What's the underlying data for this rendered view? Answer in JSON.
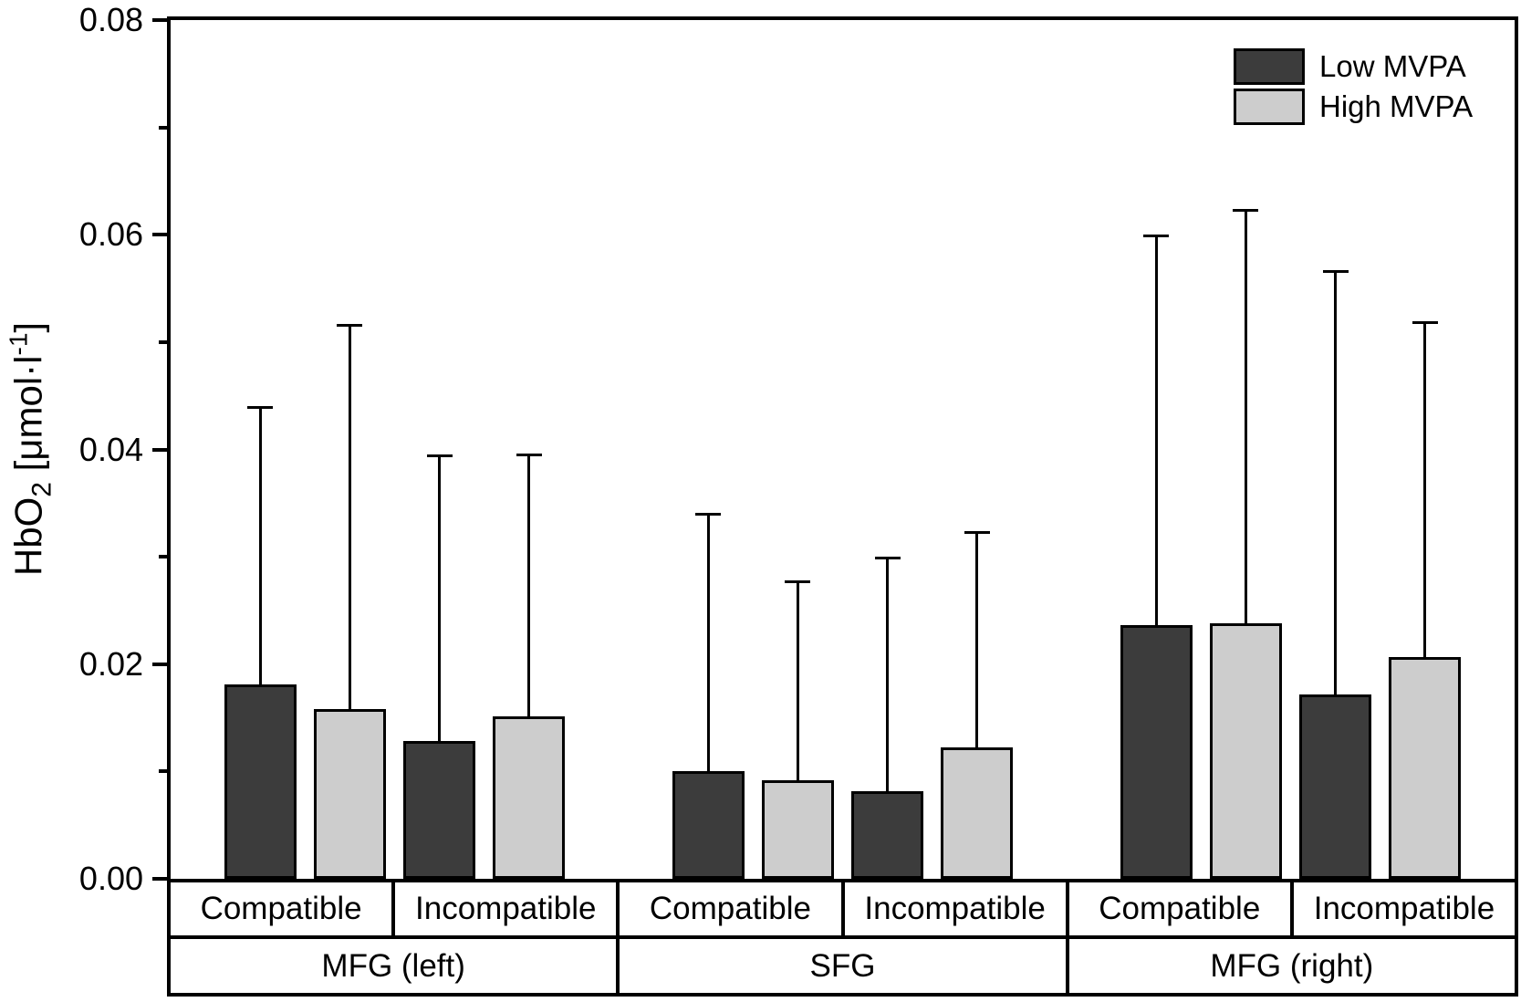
{
  "chart_data": {
    "type": "bar",
    "title": "",
    "ylabel": "HbO2 [umol/l^-1]",
    "ylabel_parts": {
      "prefix": "HbO",
      "sub": "2",
      "mid": " [μmol·l",
      "sup": "-1",
      "suffix": "]"
    },
    "ylim": [
      0,
      0.08
    ],
    "yticks": [
      0,
      0.02,
      0.04,
      0.06,
      0.08
    ],
    "ytick_labels": [
      "0.00",
      "0.02",
      "0.04",
      "0.06",
      "0.08"
    ],
    "yticks_minor": [
      0.01,
      0.03,
      0.05,
      0.07
    ],
    "grid": false,
    "error_bars": "upper-only",
    "legend": {
      "position": "top-right",
      "entries": [
        {
          "label": "Low MVPA",
          "color": "#3c3c3c"
        },
        {
          "label": "High MVPA",
          "color": "#cdcdcd"
        }
      ]
    },
    "colors": {
      "axis": "#000000",
      "background": "#ffffff"
    },
    "groups": [
      {
        "region": "MFG (left)",
        "conditions": [
          {
            "label": "Compatible",
            "bars": [
              {
                "series": "Low MVPA",
                "mean": 0.0181,
                "sd": 0.0258
              },
              {
                "series": "High MVPA",
                "mean": 0.0158,
                "sd": 0.0358
              }
            ]
          },
          {
            "label": "Incompatible",
            "bars": [
              {
                "series": "Low MVPA",
                "mean": 0.0128,
                "sd": 0.0266
              },
              {
                "series": "High MVPA",
                "mean": 0.0151,
                "sd": 0.0244
              }
            ]
          }
        ]
      },
      {
        "region": "SFG",
        "conditions": [
          {
            "label": "Compatible",
            "bars": [
              {
                "series": "Low MVPA",
                "mean": 0.01,
                "sd": 0.024
              },
              {
                "series": "High MVPA",
                "mean": 0.0092,
                "sd": 0.0185
              }
            ]
          },
          {
            "label": "Incompatible",
            "bars": [
              {
                "series": "Low MVPA",
                "mean": 0.0082,
                "sd": 0.0217
              },
              {
                "series": "High MVPA",
                "mean": 0.0122,
                "sd": 0.0201
              }
            ]
          }
        ]
      },
      {
        "region": "MFG (right)",
        "conditions": [
          {
            "label": "Compatible",
            "bars": [
              {
                "series": "Low MVPA",
                "mean": 0.0236,
                "sd": 0.0363
              },
              {
                "series": "High MVPA",
                "mean": 0.0238,
                "sd": 0.0385
              }
            ]
          },
          {
            "label": "Incompatible",
            "bars": [
              {
                "series": "Low MVPA",
                "mean": 0.0172,
                "sd": 0.0394
              },
              {
                "series": "High MVPA",
                "mean": 0.0207,
                "sd": 0.0311
              }
            ]
          }
        ]
      }
    ]
  }
}
